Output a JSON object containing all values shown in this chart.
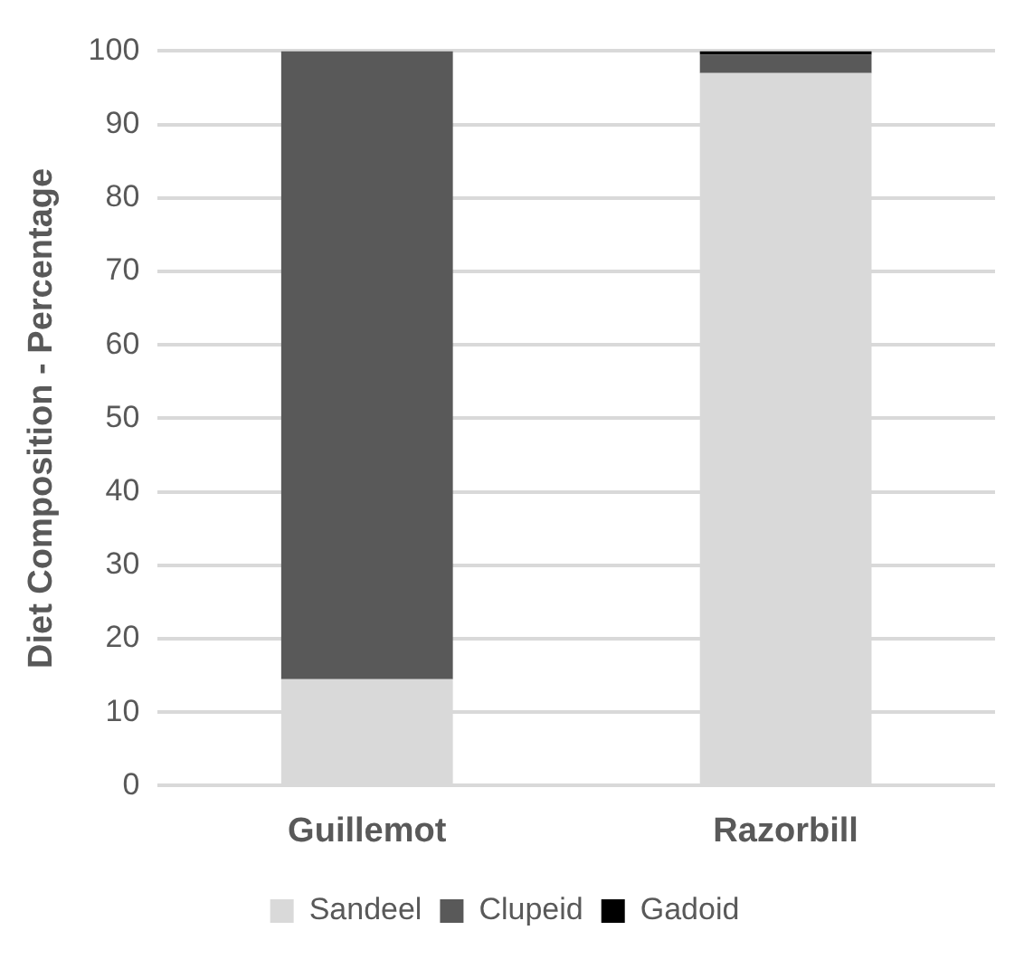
{
  "chart_data": {
    "type": "bar",
    "ylabel": "Diet Composition - Percentage",
    "categories": [
      "Guillemot",
      "Razorbill"
    ],
    "stacked": true,
    "series": [
      {
        "name": "Sandeel",
        "color": "#d9d9d9",
        "values": [
          14.5,
          97
        ]
      },
      {
        "name": "Clupeid",
        "color": "#595959",
        "values": [
          85.5,
          2.5
        ]
      },
      {
        "name": "Gadoid",
        "color": "#000000",
        "values": [
          0,
          0.5
        ]
      }
    ],
    "ylim": [
      0,
      100
    ],
    "yticks": [
      0,
      10,
      20,
      30,
      40,
      50,
      60,
      70,
      80,
      90,
      100
    ],
    "grid": "y",
    "legend": "bottom"
  }
}
